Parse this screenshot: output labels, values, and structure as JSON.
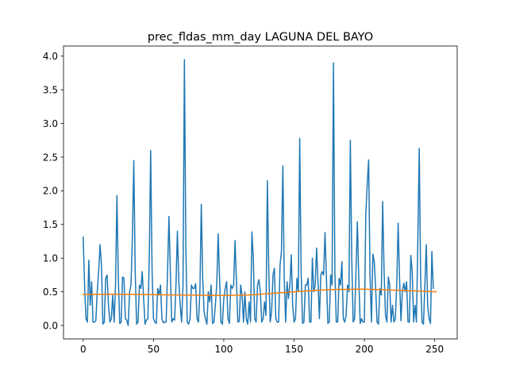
{
  "chart_data": {
    "type": "line",
    "title": "prec_fldas_mm_day LAGUNA DEL BAYO",
    "xlabel": "",
    "ylabel": "",
    "xlim": [
      -14,
      266
    ],
    "ylim": [
      -0.2,
      4.15
    ],
    "x_ticks": [
      0,
      50,
      100,
      150,
      200,
      250
    ],
    "y_ticks": [
      0.0,
      0.5,
      1.0,
      1.5,
      2.0,
      2.5,
      3.0,
      3.5,
      4.0
    ],
    "x_tick_labels": [
      "0",
      "50",
      "100",
      "150",
      "200",
      "250"
    ],
    "y_tick_labels": [
      "0.0",
      "0.5",
      "1.0",
      "1.5",
      "2.0",
      "2.5",
      "3.0",
      "3.5",
      "4.0"
    ],
    "grid": false,
    "legend": "none",
    "series": [
      {
        "color": "#1f77b4",
        "x_start": 0,
        "x_step": 1,
        "values": [
          1.31,
          0.6,
          0.1,
          0.05,
          0.97,
          0.3,
          0.65,
          0.05,
          0.05,
          0.07,
          0.5,
          0.8,
          1.2,
          0.9,
          0.02,
          0.05,
          0.7,
          0.75,
          0.3,
          0.05,
          0.1,
          0.45,
          0.05,
          0.6,
          1.93,
          0.7,
          0.03,
          0.05,
          0.72,
          0.7,
          0.1,
          0.08,
          0.0,
          0.5,
          0.6,
          1.3,
          2.45,
          0.8,
          0.02,
          0.05,
          0.6,
          0.55,
          0.8,
          0.4,
          0.02,
          0.08,
          0.1,
          1.0,
          2.6,
          0.8,
          0.1,
          0.05,
          0.03,
          0.55,
          0.45,
          0.6,
          0.1,
          0.04,
          0.05,
          0.05,
          0.8,
          1.62,
          0.8,
          0.05,
          0.1,
          0.08,
          0.6,
          1.4,
          0.65,
          0.3,
          0.05,
          0.6,
          3.95,
          1.2,
          0.05,
          0.02,
          0.1,
          0.6,
          0.55,
          0.55,
          0.62,
          0.1,
          0.05,
          0.5,
          1.8,
          0.7,
          0.2,
          0.1,
          0.02,
          0.5,
          0.35,
          0.6,
          0.03,
          0.05,
          0.3,
          0.62,
          1.36,
          0.7,
          0.05,
          0.02,
          0.4,
          0.55,
          0.65,
          0.1,
          0.03,
          0.6,
          0.55,
          0.6,
          1.26,
          0.65,
          0.05,
          0.06,
          0.6,
          0.45,
          0.05,
          0.5,
          0.1,
          0.02,
          0.35,
          0.05,
          1.39,
          1.0,
          0.1,
          0.05,
          0.6,
          0.68,
          0.5,
          0.05,
          0.1,
          0.35,
          0.15,
          2.15,
          0.8,
          0.05,
          0.2,
          0.75,
          0.85,
          0.1,
          0.05,
          0.05,
          0.9,
          1.1,
          2.37,
          0.7,
          0.05,
          0.65,
          0.4,
          0.6,
          1.05,
          0.3,
          0.05,
          0.1,
          0.7,
          0.5,
          2.78,
          0.8,
          0.03,
          0.05,
          0.6,
          0.6,
          0.7,
          0.05,
          0.05,
          1.0,
          0.5,
          0.6,
          1.15,
          0.65,
          0.1,
          0.75,
          0.8,
          0.75,
          1.38,
          0.7,
          0.03,
          0.05,
          0.75,
          0.6,
          3.9,
          0.8,
          0.05,
          0.05,
          0.7,
          0.6,
          0.95,
          0.1,
          0.05,
          0.15,
          0.6,
          0.5,
          2.75,
          1.0,
          0.05,
          0.1,
          0.8,
          1.54,
          0.7,
          0.03,
          0.1,
          0.05,
          0.05,
          1.65,
          2.1,
          2.46,
          0.75,
          0.05,
          1.06,
          0.95,
          0.55,
          0.05,
          0.02,
          0.55,
          0.45,
          1.84,
          0.8,
          0.15,
          0.05,
          0.72,
          0.6,
          0.05,
          0.3,
          0.05,
          0.1,
          0.6,
          1.52,
          0.7,
          0.07,
          0.5,
          0.63,
          0.5,
          0.65,
          0.05,
          0.05,
          1.04,
          0.8,
          0.05,
          0.3,
          0.05,
          1.25,
          2.63,
          0.7,
          0.05,
          0.02,
          0.6,
          1.2,
          0.3,
          0.1,
          0.03,
          1.1,
          0.55
        ]
      },
      {
        "color": "#ff7f0e",
        "x": [
          0,
          20,
          40,
          60,
          80,
          100,
          120,
          140,
          160,
          180,
          200,
          220,
          240,
          251
        ],
        "values": [
          0.46,
          0.465,
          0.46,
          0.455,
          0.45,
          0.445,
          0.455,
          0.485,
          0.515,
          0.535,
          0.54,
          0.525,
          0.51,
          0.5
        ]
      }
    ]
  }
}
